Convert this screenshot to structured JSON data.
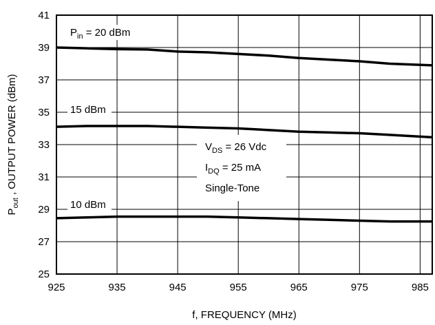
{
  "chart_data": {
    "type": "line",
    "title": "",
    "xlabel": "f, FREQUENCY (MHz)",
    "ylabel": {
      "main": "P",
      "sub": "out",
      "rest": " , OUTPUT POWER (dBm)"
    },
    "xlim": [
      925,
      987
    ],
    "ylim": [
      25,
      41
    ],
    "xticks": [
      925,
      935,
      945,
      955,
      965,
      975,
      985
    ],
    "yticks": [
      25,
      27,
      29,
      31,
      33,
      35,
      37,
      39,
      41
    ],
    "grid": true,
    "series": [
      {
        "name": {
          "main": "P",
          "sub": "in",
          "rest": " = 20 dBm"
        },
        "x": [
          925,
          930,
          935,
          940,
          945,
          950,
          955,
          960,
          965,
          970,
          975,
          980,
          987
        ],
        "y": [
          39.0,
          38.95,
          38.9,
          38.88,
          38.75,
          38.7,
          38.6,
          38.5,
          38.35,
          38.25,
          38.15,
          38.0,
          37.9
        ]
      },
      {
        "name": {
          "main": "15 dBm",
          "sub": "",
          "rest": ""
        },
        "x": [
          925,
          930,
          935,
          940,
          945,
          950,
          955,
          960,
          965,
          970,
          975,
          980,
          987
        ],
        "y": [
          34.1,
          34.15,
          34.15,
          34.15,
          34.1,
          34.05,
          34.0,
          33.9,
          33.8,
          33.75,
          33.7,
          33.6,
          33.45
        ]
      },
      {
        "name": {
          "main": "10 dBm",
          "sub": "",
          "rest": ""
        },
        "x": [
          925,
          930,
          935,
          940,
          945,
          950,
          955,
          960,
          965,
          970,
          975,
          980,
          987
        ],
        "y": [
          28.45,
          28.5,
          28.55,
          28.55,
          28.55,
          28.55,
          28.5,
          28.45,
          28.4,
          28.35,
          28.3,
          28.25,
          28.25
        ]
      }
    ],
    "annotation": [
      {
        "main": "V",
        "sub": "DS",
        "rest": " = 26 Vdc"
      },
      {
        "main": "I",
        "sub": "DQ",
        "rest": " = 25 mA"
      },
      {
        "main": "Single-Tone",
        "sub": "",
        "rest": ""
      }
    ]
  }
}
